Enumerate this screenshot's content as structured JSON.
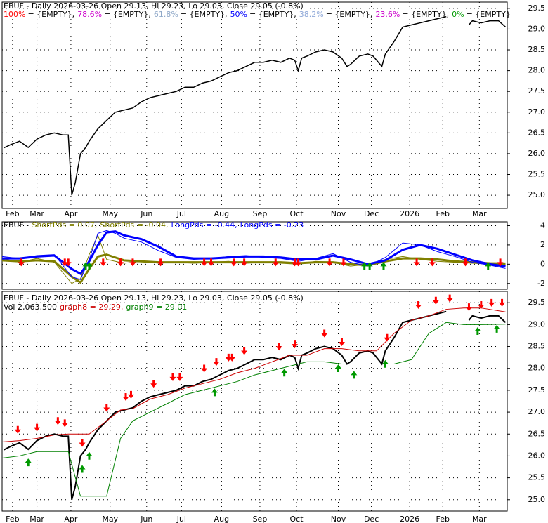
{
  "chart_data": [
    {
      "type": "line",
      "title": "EBUF - Daily 2026-03-26 Open 29.13, Hi 29.23, Lo 29.03, Close 29.05 (-0.8%)",
      "fib_levels": [
        {
          "name": "100%",
          "color": "#ff0000",
          "text": "= {EMPTY},"
        },
        {
          "name": "78.6%",
          "color": "#cc00cc",
          "text": "= {EMPTY},"
        },
        {
          "name": "61.8%",
          "color": "#8fa8c8",
          "text": "= {EMPTY},"
        },
        {
          "name": "50%",
          "color": "#0000ff",
          "text": "= {EMPTY},"
        },
        {
          "name": "38.2%",
          "color": "#8fa8d8",
          "text": "= {EMPTY},"
        },
        {
          "name": "23.6%",
          "color": "#cc00cc",
          "text": "= {EMPTY},"
        },
        {
          "name": "0%",
          "color": "#009900",
          "text": "= {EMPTY}"
        }
      ],
      "xlim": [
        0,
        290
      ],
      "xticks": [
        {
          "value": 6,
          "label": "Feb"
        },
        {
          "value": 20,
          "label": "Mar"
        },
        {
          "value": 39.5,
          "label": "Apr"
        },
        {
          "value": 62,
          "label": "May"
        },
        {
          "value": 83,
          "label": "Jun"
        },
        {
          "value": 103,
          "label": "Jul"
        },
        {
          "value": 126,
          "label": "Aug"
        },
        {
          "value": 148,
          "label": "Sep"
        },
        {
          "value": 169,
          "label": "Oct"
        },
        {
          "value": 193,
          "label": "Nov"
        },
        {
          "value": 212,
          "label": "Dec"
        },
        {
          "value": 234,
          "label": "2026"
        },
        {
          "value": 253,
          "label": "Feb"
        },
        {
          "value": 274,
          "label": "Mar"
        }
      ],
      "ylim": [
        24.68,
        29.65
      ],
      "yticks": [
        {
          "value": 25,
          "label": "25.0"
        },
        25.5,
        {
          "value": 26,
          "label": "26.0"
        },
        26.5,
        {
          "value": 27,
          "label": "27.0"
        },
        27.5,
        {
          "value": 28,
          "label": "28.0"
        },
        28.5,
        {
          "value": 29,
          "label": "29.0"
        },
        29.5
      ],
      "grid": true,
      "x": [
        1,
        5,
        10,
        15,
        20,
        25,
        30,
        35,
        38,
        40,
        42,
        45,
        48,
        50,
        55,
        60,
        65,
        70,
        75,
        80,
        85,
        90,
        95,
        100,
        105,
        110,
        115,
        120,
        125,
        130,
        135,
        140,
        145,
        150,
        155,
        160,
        165,
        168,
        170,
        172,
        175,
        180,
        185,
        190,
        195,
        198,
        200,
        205,
        210,
        213,
        216,
        218,
        220,
        225,
        230,
        235,
        240,
        245,
        250,
        255,
        260,
        265,
        268,
        270,
        275,
        280,
        285,
        289
      ],
      "series": [
        {
          "color": "#000000",
          "values": [
            26.14,
            26.22,
            26.3,
            26.15,
            26.35,
            26.45,
            26.5,
            26.45,
            26.45,
            25.0,
            25.3,
            26.0,
            26.15,
            26.3,
            26.6,
            26.8,
            27.0,
            27.05,
            27.1,
            27.25,
            27.35,
            27.4,
            27.45,
            27.5,
            27.6,
            27.6,
            27.7,
            27.75,
            27.85,
            27.95,
            28.0,
            28.1,
            28.2,
            28.2,
            28.25,
            28.2,
            28.3,
            28.25,
            28.0,
            28.3,
            28.35,
            28.45,
            28.5,
            28.45,
            28.3,
            28.1,
            28.15,
            28.35,
            28.4,
            28.35,
            28.2,
            28.1,
            28.4,
            28.7,
            29.05,
            29.1,
            29.15,
            29.2,
            29.25,
            29.3,
            null,
            null,
            29.1,
            29.2,
            29.15,
            29.2,
            29.2,
            29.05
          ]
        }
      ]
    },
    {
      "type": "line",
      "title": "EBUF -",
      "xlim": [
        0,
        290
      ],
      "ylim": [
        -2.6,
        4.4
      ],
      "yticks": [
        -2,
        0,
        2,
        4
      ],
      "grid": true,
      "x": [
        0,
        10,
        20,
        30,
        40,
        45,
        50,
        55,
        60,
        65,
        70,
        80,
        90,
        100,
        110,
        120,
        130,
        140,
        150,
        160,
        170,
        180,
        190,
        200,
        210,
        220,
        230,
        240,
        250,
        260,
        270,
        280,
        289
      ],
      "series": [
        {
          "name": "ShortPds = 0.07,",
          "color": "#808000",
          "width": 3,
          "values": [
            0.4,
            0.3,
            0.4,
            0.3,
            -1.3,
            -1.9,
            -0.5,
            0.8,
            1.0,
            0.7,
            0.4,
            0.3,
            0.2,
            0.2,
            0.2,
            0.2,
            0.2,
            0.2,
            0.2,
            0.2,
            0.1,
            0.2,
            0.2,
            0.0,
            -0.1,
            0.3,
            0.6,
            0.6,
            0.5,
            0.3,
            0.2,
            0.1,
            0.07
          ]
        },
        {
          "name": "ShortPds = -0.04,",
          "color": "#808000",
          "width": 1,
          "values": [
            0.6,
            0.2,
            0.6,
            0.2,
            -2.0,
            -1.5,
            1.0,
            3.0,
            0.5,
            0.3,
            0.1,
            0.3,
            0.1,
            0.2,
            0.1,
            0.2,
            0.3,
            0.1,
            0.2,
            0.1,
            0.0,
            0.3,
            0.2,
            -0.2,
            0.0,
            0.5,
            0.8,
            0.5,
            0.3,
            0.2,
            0.1,
            0.0,
            -0.04
          ]
        },
        {
          "name": "LongPds = -0.44,",
          "color": "#0000ff",
          "width": 1,
          "values": [
            0.8,
            0.6,
            0.9,
            1.0,
            -1.3,
            -1.6,
            0.5,
            3.2,
            3.5,
            3.2,
            2.7,
            2.3,
            1.4,
            0.7,
            0.5,
            0.6,
            0.8,
            0.9,
            0.7,
            0.6,
            0.3,
            0.6,
            1.1,
            0.2,
            -0.2,
            0.7,
            2.2,
            2.0,
            1.3,
            0.8,
            0.2,
            -0.1,
            -0.44
          ]
        },
        {
          "name": "LongPds = -0.23",
          "color": "#0000ff",
          "width": 3,
          "values": [
            0.6,
            0.6,
            0.8,
            0.9,
            -0.5,
            -1.0,
            0.3,
            2.0,
            3.3,
            3.4,
            3.0,
            2.6,
            1.8,
            0.8,
            0.6,
            0.6,
            0.7,
            0.8,
            0.8,
            0.7,
            0.5,
            0.5,
            0.9,
            0.5,
            0.0,
            0.4,
            1.5,
            2.0,
            1.6,
            1.0,
            0.4,
            0.0,
            -0.23
          ]
        }
      ],
      "sell_signals": [
        11,
        36,
        38,
        58,
        68,
        75,
        91,
        116,
        120,
        133,
        139,
        157,
        168,
        170,
        188,
        196,
        238,
        247,
        266,
        286
      ],
      "buy_signals": [
        48,
        50,
        208,
        211,
        219,
        279
      ]
    },
    {
      "type": "line",
      "title": "EBUF - Daily 2026-03-26 Open 29.13, Hi 29.23, Lo 29.03, Close 29.05 (-0.8%)",
      "volume_label": "Vol 2,063,500",
      "xlim": [
        0,
        290
      ],
      "xticks": [
        {
          "value": 6,
          "label": "Feb"
        },
        {
          "value": 20,
          "label": "Mar"
        },
        {
          "value": 39.5,
          "label": "Apr"
        },
        {
          "value": 62,
          "label": "May"
        },
        {
          "value": 83,
          "label": "Jun"
        },
        {
          "value": 103,
          "label": "Jul"
        },
        {
          "value": 126,
          "label": "Aug"
        },
        {
          "value": 148,
          "label": "Sep"
        },
        {
          "value": 169,
          "label": "Oct"
        },
        {
          "value": 193,
          "label": "Nov"
        },
        {
          "value": 212,
          "label": "Dec"
        },
        {
          "value": 234,
          "label": "2026"
        },
        {
          "value": 253,
          "label": "Feb"
        },
        {
          "value": 274,
          "label": "Mar"
        }
      ],
      "ylim": [
        24.74,
        29.76
      ],
      "yticks": [
        {
          "value": 25,
          "label": "25.0"
        },
        25.5,
        {
          "value": 26,
          "label": "26.0"
        },
        26.5,
        {
          "value": 27,
          "label": "27.0"
        },
        27.5,
        {
          "value": 28,
          "label": "28.0"
        },
        28.5,
        {
          "value": 29,
          "label": "29.0"
        },
        29.5
      ],
      "grid": true,
      "x": [
        1,
        5,
        10,
        15,
        20,
        25,
        30,
        35,
        38,
        40,
        42,
        45,
        48,
        50,
        55,
        60,
        65,
        70,
        75,
        80,
        85,
        90,
        95,
        100,
        105,
        110,
        115,
        120,
        125,
        130,
        135,
        140,
        145,
        150,
        155,
        160,
        165,
        168,
        170,
        172,
        175,
        180,
        185,
        190,
        195,
        198,
        200,
        205,
        210,
        213,
        216,
        218,
        220,
        225,
        230,
        235,
        240,
        245,
        250,
        255,
        260,
        265,
        268,
        270,
        275,
        280,
        285,
        289
      ],
      "series": [
        {
          "color": "#000000",
          "width": 2,
          "values": [
            26.14,
            26.22,
            26.3,
            26.15,
            26.35,
            26.45,
            26.5,
            26.45,
            26.45,
            25.0,
            25.3,
            26.0,
            26.15,
            26.3,
            26.6,
            26.8,
            27.0,
            27.05,
            27.1,
            27.25,
            27.35,
            27.4,
            27.45,
            27.5,
            27.6,
            27.6,
            27.7,
            27.75,
            27.85,
            27.95,
            28.0,
            28.1,
            28.2,
            28.2,
            28.25,
            28.2,
            28.3,
            28.25,
            28.0,
            28.3,
            28.35,
            28.45,
            28.5,
            28.45,
            28.3,
            28.1,
            28.15,
            28.35,
            28.4,
            28.35,
            28.2,
            28.1,
            28.4,
            28.7,
            29.05,
            29.1,
            29.15,
            29.2,
            29.25,
            29.3,
            null,
            null,
            29.1,
            29.2,
            29.15,
            29.2,
            29.2,
            29.05
          ]
        },
        {
          "name": "graph8 = 29.29,",
          "color": "#cc0000",
          "width": 1,
          "x": [
            0,
            10,
            20,
            30,
            38,
            45,
            50,
            60,
            68,
            75,
            85,
            95,
            105,
            115,
            125,
            135,
            145,
            155,
            165,
            175,
            185,
            195,
            205,
            215,
            225,
            235,
            245,
            255,
            265,
            275,
            289
          ],
          "values": [
            26.32,
            26.35,
            26.4,
            26.48,
            26.5,
            26.5,
            26.5,
            26.8,
            27.05,
            27.08,
            27.3,
            27.4,
            27.55,
            27.65,
            27.75,
            27.9,
            28.0,
            28.15,
            28.3,
            28.3,
            28.45,
            28.45,
            28.4,
            28.4,
            28.8,
            29.1,
            29.2,
            29.35,
            29.38,
            29.38,
            29.29
          ]
        },
        {
          "name": "graph9 = 29.01",
          "color": "#008000",
          "width": 1,
          "x": [
            0,
            10,
            20,
            30,
            38,
            45,
            50,
            60,
            68,
            75,
            85,
            95,
            105,
            115,
            125,
            135,
            145,
            155,
            165,
            175,
            185,
            195,
            205,
            215,
            225,
            235,
            245,
            255,
            265,
            275,
            289
          ],
          "values": [
            25.95,
            26.0,
            26.1,
            26.1,
            26.1,
            25.08,
            25.08,
            25.08,
            26.4,
            26.8,
            27.0,
            27.2,
            27.4,
            27.5,
            27.6,
            27.7,
            27.85,
            27.95,
            28.05,
            28.15,
            28.15,
            28.1,
            28.1,
            28.1,
            28.1,
            28.2,
            28.8,
            29.05,
            29.0,
            29.0,
            29.01
          ]
        }
      ],
      "sell_signals": [
        9,
        20,
        32,
        36,
        46,
        60,
        71,
        74,
        87,
        98,
        102,
        116,
        123,
        130,
        132,
        139,
        159,
        168,
        185,
        195,
        221,
        239,
        249,
        257,
        268,
        275,
        281,
        287
      ],
      "buy_signals": [
        15,
        46,
        50,
        122,
        162,
        193,
        202,
        220,
        273,
        284
      ]
    }
  ]
}
